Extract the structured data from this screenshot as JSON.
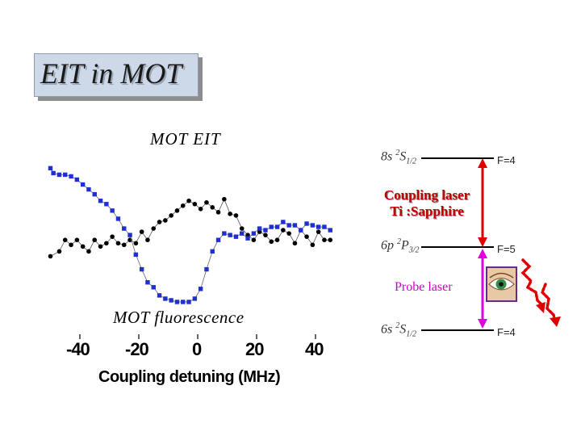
{
  "title": "EIT in MOT",
  "chart_data": {
    "type": "scatter",
    "x_ticks": [
      "-40",
      "-20",
      "0",
      "20",
      "40"
    ],
    "xlabel": "Coupling detuning  (MHz)",
    "xlim": [
      -50,
      50
    ],
    "series": [
      {
        "name": "MOT EIT",
        "color": "#000000",
        "marker": "circle",
        "x": [
          -50,
          -47,
          -45,
          -43,
          -41,
          -39,
          -37,
          -35,
          -33,
          -31,
          -29,
          -27,
          -25,
          -23,
          -21,
          -19,
          -17,
          -15,
          -13,
          -11,
          -9,
          -7,
          -5,
          -3,
          -1,
          1,
          3,
          5,
          7,
          9,
          11,
          13,
          15,
          17,
          19,
          21,
          23,
          25,
          27,
          29,
          31,
          33,
          35,
          37,
          39,
          41,
          43,
          45
        ],
        "y": [
          0.3,
          0.33,
          0.4,
          0.37,
          0.4,
          0.36,
          0.33,
          0.4,
          0.36,
          0.38,
          0.42,
          0.38,
          0.37,
          0.4,
          0.38,
          0.45,
          0.4,
          0.47,
          0.51,
          0.52,
          0.55,
          0.58,
          0.61,
          0.64,
          0.62,
          0.59,
          0.63,
          0.6,
          0.57,
          0.65,
          0.56,
          0.55,
          0.47,
          0.43,
          0.4,
          0.45,
          0.43,
          0.39,
          0.4,
          0.46,
          0.44,
          0.38,
          0.46,
          0.42,
          0.37,
          0.45,
          0.4,
          0.4
        ]
      },
      {
        "name": "MOT fluorescence",
        "color": "#1f2fd0",
        "marker": "square",
        "x": [
          -50,
          -49,
          -47,
          -45,
          -43,
          -41,
          -39,
          -37,
          -35,
          -33,
          -31,
          -29,
          -27,
          -25,
          -23,
          -21,
          -19,
          -17,
          -15,
          -13,
          -11,
          -9,
          -7,
          -5,
          -3,
          -1,
          1,
          3,
          5,
          7,
          9,
          11,
          13,
          15,
          17,
          19,
          21,
          23,
          25,
          27,
          29,
          31,
          33,
          35,
          37,
          39,
          41,
          43,
          45
        ],
        "y": [
          0.84,
          0.81,
          0.8,
          0.8,
          0.79,
          0.77,
          0.74,
          0.71,
          0.68,
          0.64,
          0.62,
          0.58,
          0.53,
          0.47,
          0.43,
          0.31,
          0.22,
          0.14,
          0.11,
          0.06,
          0.04,
          0.03,
          0.02,
          0.02,
          0.02,
          0.04,
          0.1,
          0.22,
          0.33,
          0.4,
          0.44,
          0.43,
          0.42,
          0.44,
          0.41,
          0.44,
          0.47,
          0.46,
          0.48,
          0.48,
          0.51,
          0.49,
          0.49,
          0.46,
          0.5,
          0.49,
          0.48,
          0.48,
          0.46
        ]
      }
    ]
  },
  "labels": {
    "mot_eit": "MOT EIT",
    "mot_fluorescence": "MOT fluorescence"
  },
  "level_diagram": {
    "upper": {
      "config": "8s",
      "term": "2",
      "L": "S",
      "J": "1/2",
      "F": "F=4"
    },
    "middle": {
      "config": "6p",
      "term": "2",
      "L": "P",
      "J": "3/2",
      "F": "F=5"
    },
    "lower": {
      "config": "6s",
      "term": "2",
      "L": "S",
      "J": "1/2",
      "F": "F=4"
    },
    "coupling_label_1": "Coupling laser",
    "coupling_label_2": "Ti :Sapphire",
    "probe_label": "Probe laser",
    "coupling_color": "#e00000",
    "probe_color": "#e000e0",
    "fluorescence_color": "#e00000",
    "eye_icon": "eye-icon"
  }
}
